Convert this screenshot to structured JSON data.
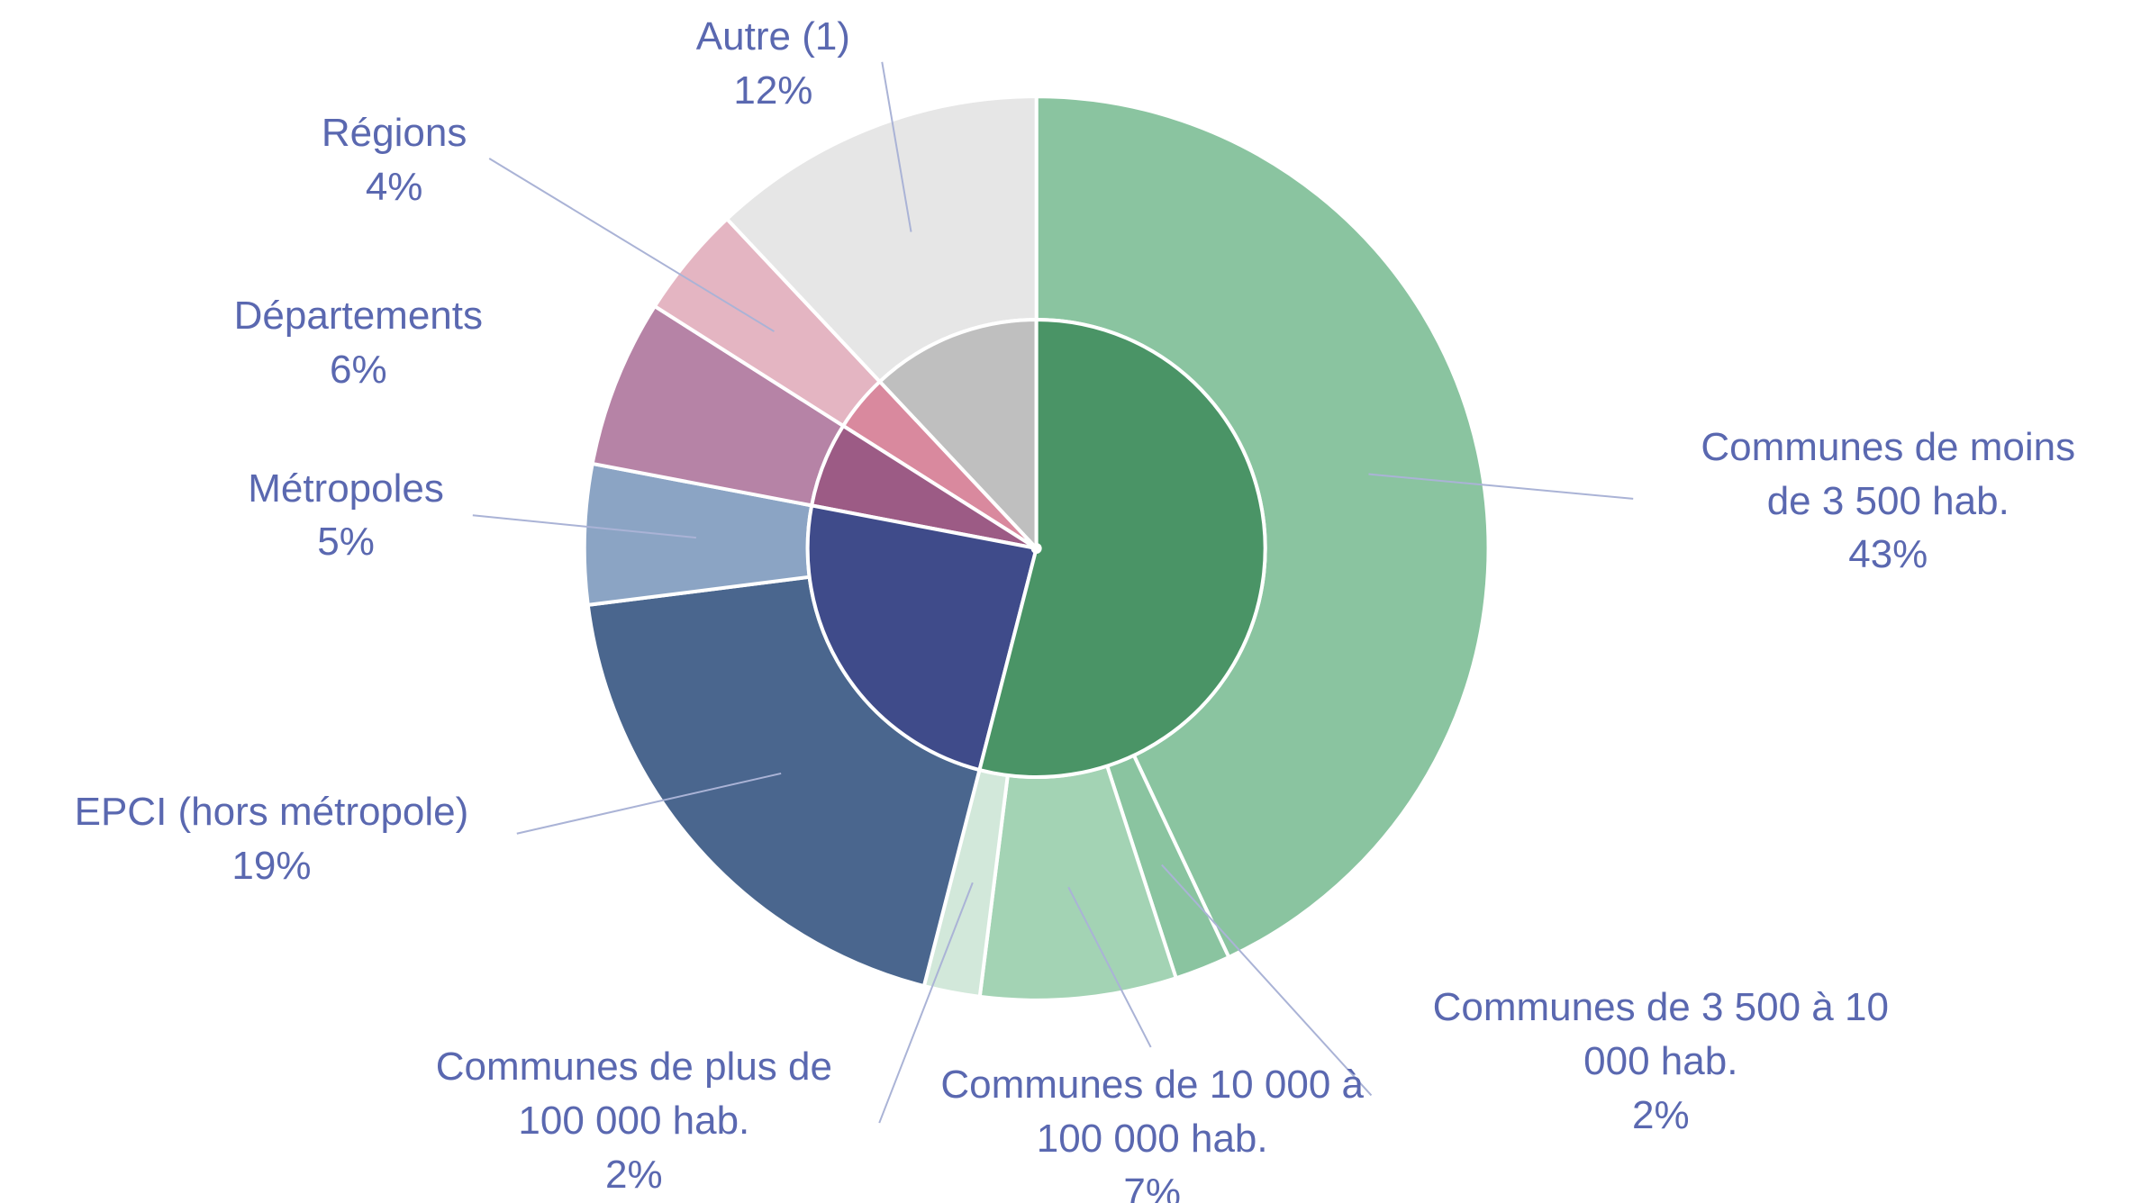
{
  "chart_data": {
    "type": "sunburst",
    "groups": [
      {
        "color": "#4a9466",
        "items": [
          {
            "name": "Communes de moins de 3 500 hab.",
            "value": 43,
            "value_label": "43%",
            "color": "#8ac4a0"
          },
          {
            "name": "Communes de 3 500 à 10 000 hab.",
            "value": 2,
            "value_label": "2%",
            "color": "#8ac4a0"
          },
          {
            "name": "Communes de 10 000 à 100 000 hab.",
            "value": 7,
            "value_label": "7%",
            "color": "#a3d3b4"
          },
          {
            "name": "Communes de plus de 100 000 hab.",
            "value": 2,
            "value_label": "2%",
            "color": "#d2e8da"
          }
        ]
      },
      {
        "color": "#3f4b8a",
        "items": [
          {
            "name": "EPCI (hors métropole)",
            "value": 19,
            "value_label": "19%",
            "color": "#4a668e"
          },
          {
            "name": "Métropoles",
            "value": 5,
            "value_label": "5%",
            "color": "#8ba4c4"
          }
        ]
      },
      {
        "color": "#9c5b85",
        "items": [
          {
            "name": "Départements",
            "value": 6,
            "value_label": "6%",
            "color": "#b683a6"
          }
        ]
      },
      {
        "color": "#d9899e",
        "items": [
          {
            "name": "Régions",
            "value": 4,
            "value_label": "4%",
            "color": "#e4b5c2"
          }
        ]
      },
      {
        "color": "#bfbfbf",
        "items": [
          {
            "name": "Autre (1)",
            "value": 12,
            "value_label": "12%",
            "color": "#e6e6e6"
          }
        ]
      }
    ]
  }
}
